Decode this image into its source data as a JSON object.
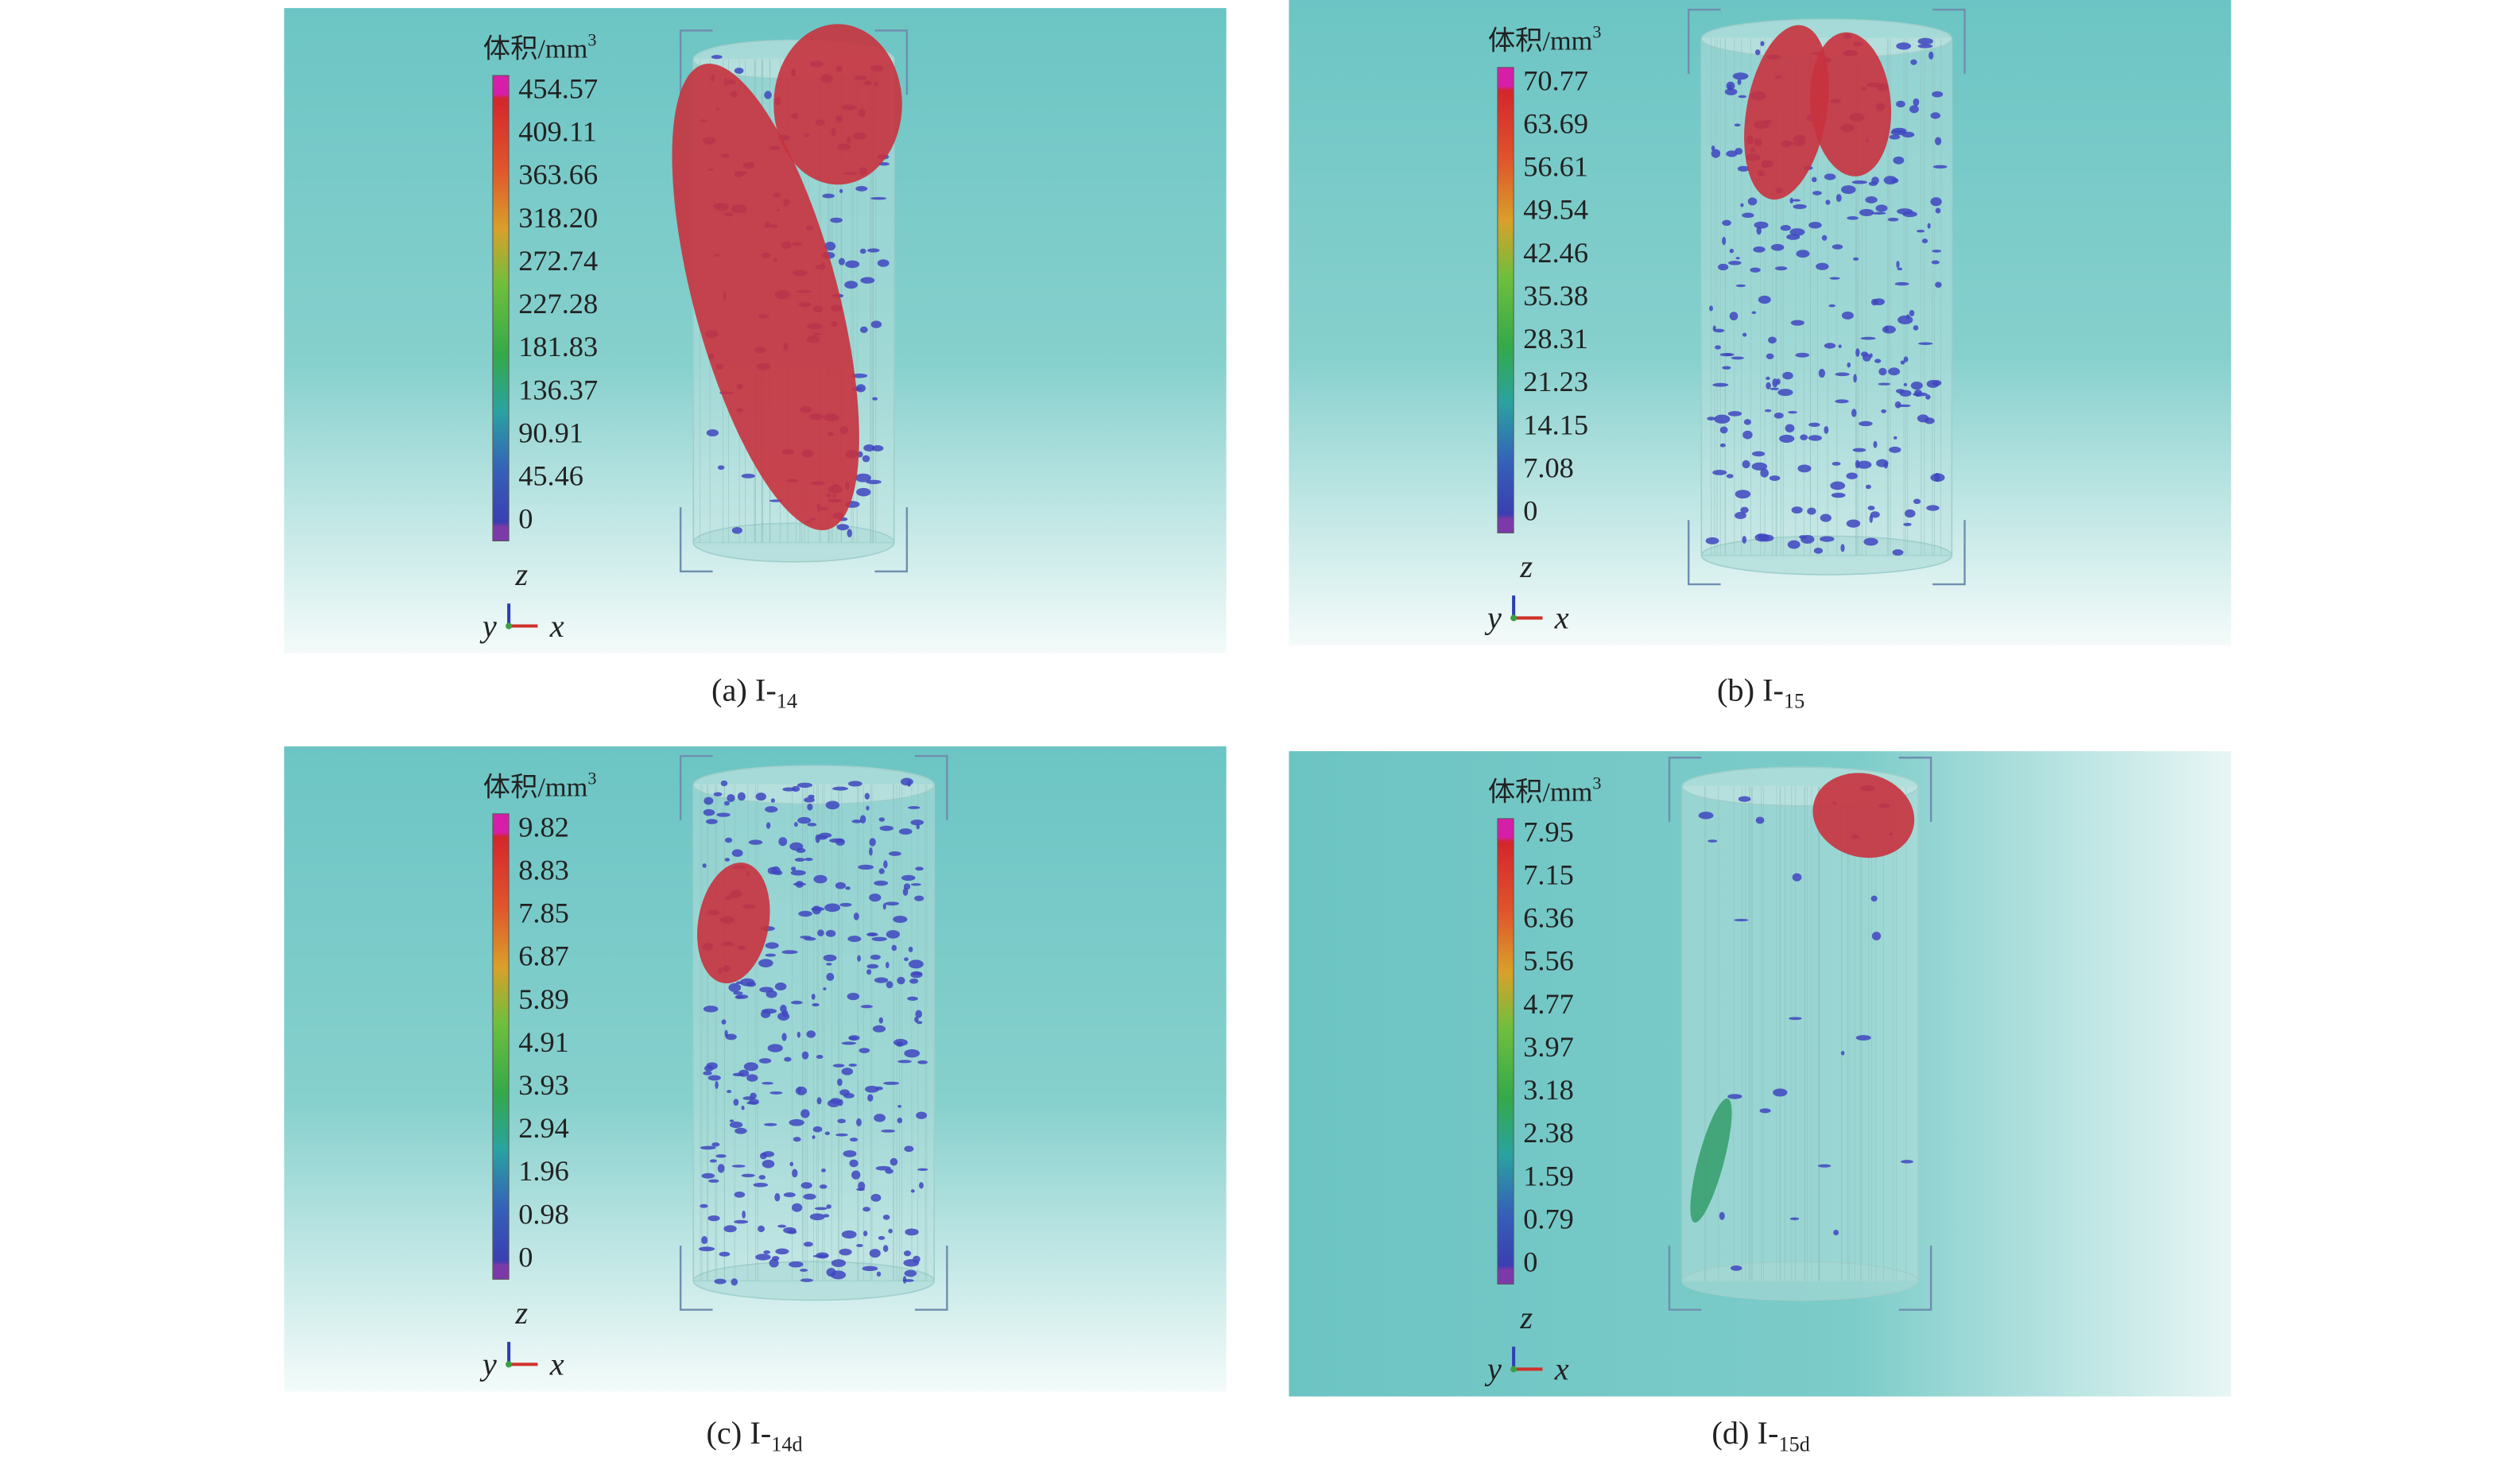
{
  "panels": [
    {
      "caption": "(a) I-",
      "caption_sub": "14",
      "colorbar_title": "体积/mm",
      "colorbar_title_sup": "3",
      "ticks": [
        "454.57",
        "409.11",
        "363.66",
        "318.20",
        "272.74",
        "227.28",
        "181.83",
        "136.37",
        "90.91",
        "45.46",
        "0"
      ],
      "axes": {
        "z": "z",
        "y": "y",
        "x": "x"
      }
    },
    {
      "caption": "(b) I-",
      "caption_sub": "15",
      "colorbar_title": "体积/mm",
      "colorbar_title_sup": "3",
      "ticks": [
        "70.77",
        "63.69",
        "56.61",
        "49.54",
        "42.46",
        "35.38",
        "28.31",
        "21.23",
        "14.15",
        "7.08",
        "0"
      ],
      "axes": {
        "z": "z",
        "y": "y",
        "x": "x"
      }
    },
    {
      "caption": "(c) I-",
      "caption_sub": "14d",
      "colorbar_title": "体积/mm",
      "colorbar_title_sup": "3",
      "ticks": [
        "9.82",
        "8.83",
        "7.85",
        "6.87",
        "5.89",
        "4.91",
        "3.93",
        "2.94",
        "1.96",
        "0.98",
        "0"
      ],
      "axes": {
        "z": "z",
        "y": "y",
        "x": "x"
      }
    },
    {
      "caption": "(d) I-",
      "caption_sub": "15d",
      "colorbar_title": "体积/mm",
      "colorbar_title_sup": "3",
      "ticks": [
        "7.95",
        "7.15",
        "6.36",
        "5.56",
        "4.77",
        "3.97",
        "3.18",
        "2.38",
        "1.59",
        "0.79",
        "0"
      ],
      "axes": {
        "z": "z",
        "y": "y",
        "x": "x"
      }
    }
  ]
}
